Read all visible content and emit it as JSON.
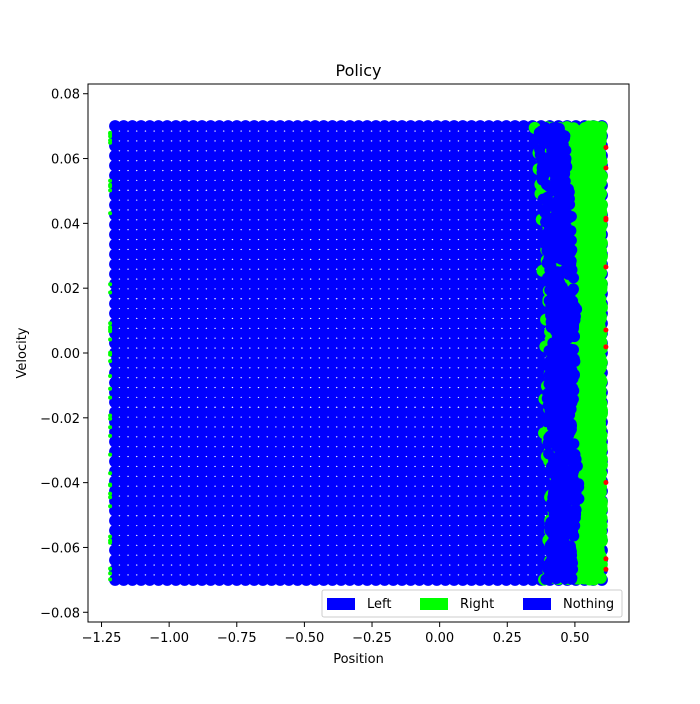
{
  "chart_data": {
    "type": "scatter",
    "title": "Policy",
    "xlabel": "Position",
    "ylabel": "Velocity",
    "xlim": [
      -1.3,
      0.7
    ],
    "ylim": [
      -0.083,
      0.083
    ],
    "x_ticks": [
      -1.25,
      -1.0,
      -0.75,
      -0.5,
      -0.25,
      0.0,
      0.25,
      0.5
    ],
    "x_tick_labels": [
      "−1.25",
      "−1.00",
      "−0.75",
      "−0.50",
      "−0.25",
      "0.00",
      "0.25",
      "0.50"
    ],
    "y_ticks": [
      -0.08,
      -0.06,
      -0.04,
      -0.02,
      0.0,
      0.02,
      0.04,
      0.06,
      0.08
    ],
    "y_tick_labels": [
      "−0.08",
      "−0.06",
      "−0.04",
      "−0.02",
      "0.00",
      "0.02",
      "0.04",
      "0.06",
      "0.08"
    ],
    "grid": false,
    "legend_position": "lower-right",
    "legend": [
      {
        "label": "Left",
        "color": "#0000ff"
      },
      {
        "label": "Right",
        "color": "#00ff00"
      },
      {
        "label": "Nothing",
        "color": "#0000ff"
      }
    ],
    "sample_domain": {
      "x": [
        -1.2,
        0.6
      ],
      "y": [
        -0.07,
        0.07
      ]
    },
    "decision_boundary_x": [
      [
        -0.07,
        0.42
      ],
      [
        -0.06,
        0.43
      ],
      [
        -0.05,
        0.44
      ],
      [
        -0.04,
        0.45
      ],
      [
        -0.03,
        0.43
      ],
      [
        -0.02,
        0.42
      ],
      [
        -0.01,
        0.43
      ],
      [
        0.0,
        0.43
      ],
      [
        0.01,
        0.44
      ],
      [
        0.02,
        0.43
      ],
      [
        0.03,
        0.42
      ],
      [
        0.04,
        0.42
      ],
      [
        0.05,
        0.41
      ],
      [
        0.06,
        0.4
      ],
      [
        0.07,
        0.39
      ]
    ],
    "colors": {
      "left": "#0000ff",
      "right": "#00ff00",
      "nothing": "#0000ff",
      "edge": "#ff0000"
    }
  }
}
